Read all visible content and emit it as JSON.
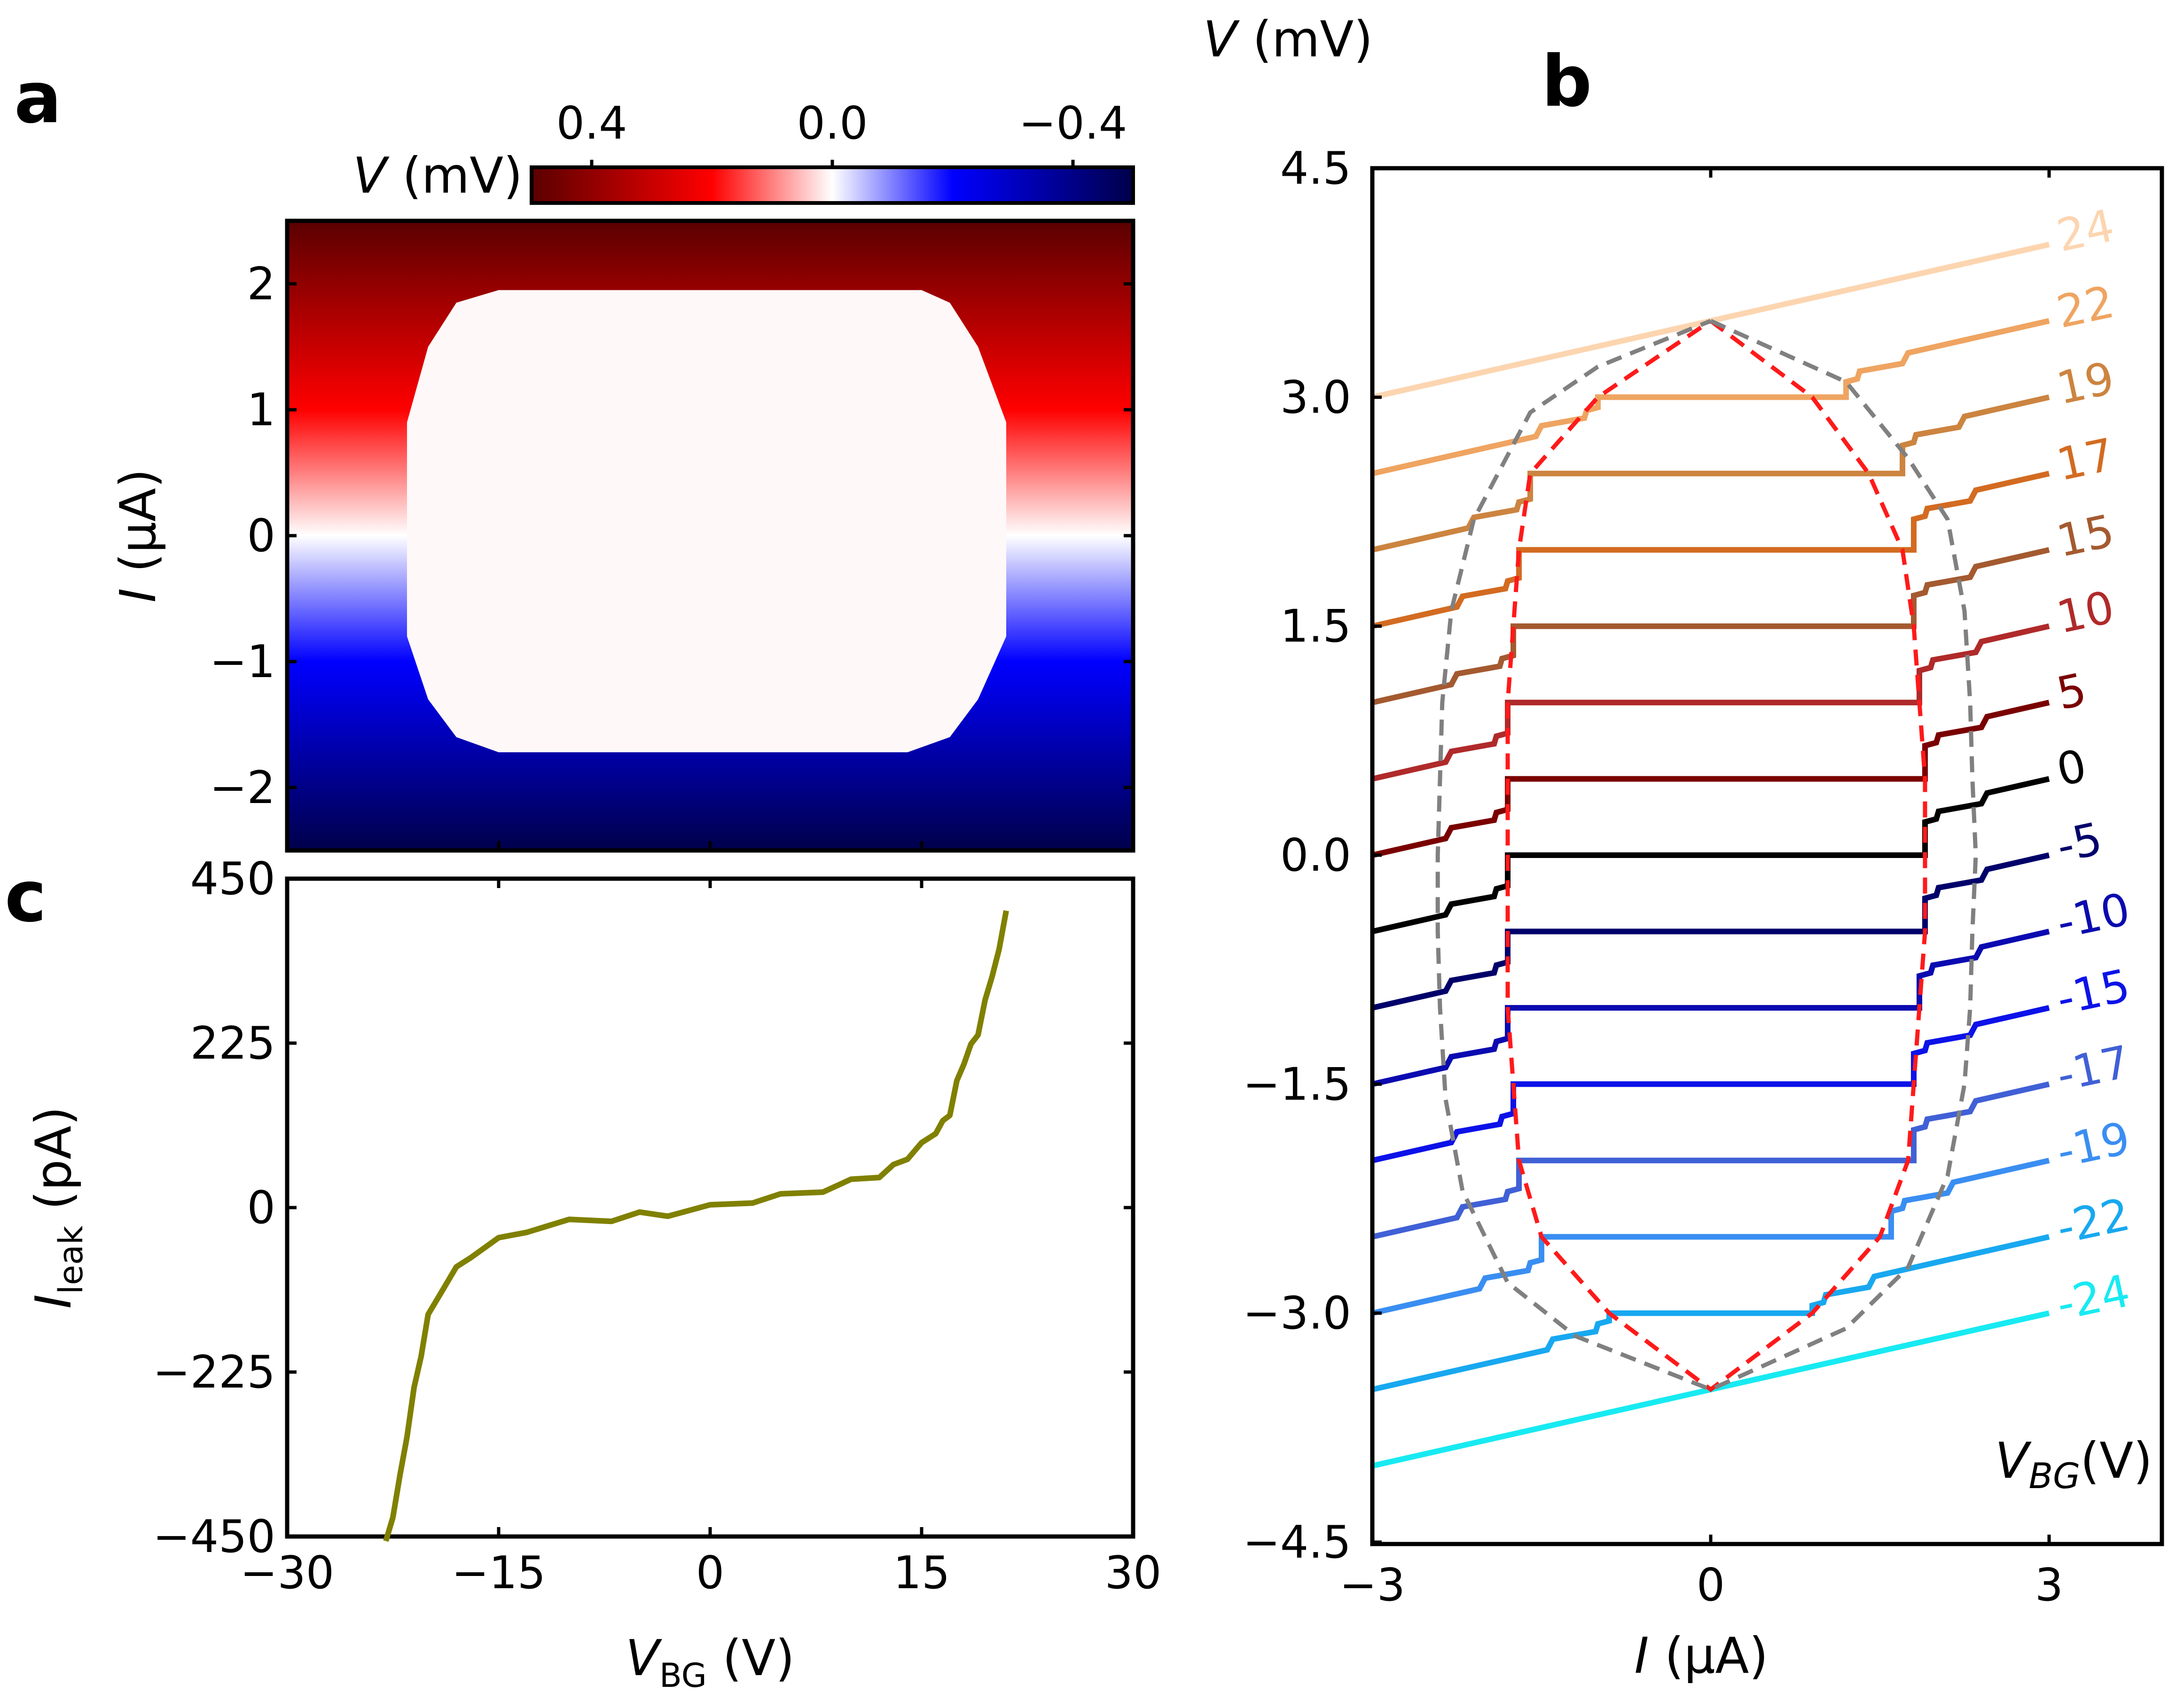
{
  "panels": {
    "a": "a",
    "b": "b",
    "c": "c"
  },
  "colorbar": {
    "label_italic": "V",
    "label_unit": " (mV)",
    "ticks": [
      "0.4",
      "0.0",
      "−0.4"
    ],
    "tick_values": [
      0.4,
      0.0,
      -0.4
    ],
    "range": [
      0.5,
      -0.5
    ],
    "colors": [
      "#5a0000",
      "#ff0000",
      "#ffffff",
      "#0000ff",
      "#00004a"
    ]
  },
  "chart_data": [
    {
      "id": "a",
      "type": "heatmap",
      "title": "",
      "xlabel": "",
      "ylabel_italic": "I",
      "ylabel_unit": " (μA)",
      "xlim": [
        -30,
        30
      ],
      "ylim": [
        -2.5,
        2.5
      ],
      "yticks": [
        2,
        1,
        0,
        -1,
        -2
      ],
      "ytick_labels": [
        "2",
        "1",
        "0",
        "−1",
        "−2"
      ],
      "superconducting_region": {
        "vbg_range": [
          -21.5,
          21.0
        ],
        "upper_switch_current_uA": [
          {
            "vbg": -21.5,
            "i": 0.9
          },
          {
            "vbg": -20,
            "i": 1.5
          },
          {
            "vbg": -18,
            "i": 1.85
          },
          {
            "vbg": -15,
            "i": 1.95
          },
          {
            "vbg": 0,
            "i": 1.95
          },
          {
            "vbg": 15,
            "i": 1.95
          },
          {
            "vbg": 17,
            "i": 1.85
          },
          {
            "vbg": 19,
            "i": 1.5
          },
          {
            "vbg": 21,
            "i": 0.9
          }
        ],
        "lower_switch_current_uA": [
          {
            "vbg": -21.5,
            "i": -0.8
          },
          {
            "vbg": -20,
            "i": -1.3
          },
          {
            "vbg": -18,
            "i": -1.6
          },
          {
            "vbg": -15,
            "i": -1.72
          },
          {
            "vbg": 0,
            "i": -1.72
          },
          {
            "vbg": 14,
            "i": -1.72
          },
          {
            "vbg": 17,
            "i": -1.6
          },
          {
            "vbg": 19,
            "i": -1.3
          },
          {
            "vbg": 21,
            "i": -0.8
          }
        ]
      }
    },
    {
      "id": "b",
      "type": "line",
      "title": "",
      "xlabel_italic": "I",
      "xlabel_unit": " (μA)",
      "ylabel_italic": "V",
      "ylabel_unit": " (mV)",
      "xlim": [
        -3,
        4.0
      ],
      "ylim": [
        -4.5,
        4.5
      ],
      "xticks": [
        -3,
        0,
        3
      ],
      "xtick_labels": [
        "−3",
        "0",
        "3"
      ],
      "yticks": [
        4.5,
        3.0,
        1.5,
        0.0,
        -1.5,
        -3.0,
        -4.5
      ],
      "ytick_labels": [
        "4.5",
        "3.0",
        "1.5",
        "0.0",
        "−1.5",
        "−3.0",
        "−4.5"
      ],
      "legend_title_italic": "V",
      "legend_title_sub": "BG",
      "legend_title_unit": "(V)",
      "slope_mV_per_uA": 0.167,
      "series": [
        {
          "name": "24",
          "vbg": 24,
          "offset_mV": 3.5,
          "ic_plus": 0.0,
          "ic_minus": 0.0,
          "color": "#fcd5b0"
        },
        {
          "name": "22",
          "vbg": 22,
          "offset_mV": 3.0,
          "ic_plus": 1.2,
          "ic_minus": -1.0,
          "color": "#efa461"
        },
        {
          "name": "19",
          "vbg": 19,
          "offset_mV": 2.5,
          "ic_plus": 1.7,
          "ic_minus": -1.6,
          "color": "#cc8440"
        },
        {
          "name": "17",
          "vbg": 17,
          "offset_mV": 2.0,
          "ic_plus": 1.8,
          "ic_minus": -1.7,
          "color": "#d36b21"
        },
        {
          "name": "15",
          "vbg": 15,
          "offset_mV": 1.5,
          "ic_plus": 1.8,
          "ic_minus": -1.75,
          "color": "#a45a30"
        },
        {
          "name": "10",
          "vbg": 10,
          "offset_mV": 1.0,
          "ic_plus": 1.85,
          "ic_minus": -1.8,
          "color": "#b02a2a"
        },
        {
          "name": "5",
          "vbg": 5,
          "offset_mV": 0.5,
          "ic_plus": 1.9,
          "ic_minus": -1.8,
          "color": "#7a0000"
        },
        {
          "name": "0",
          "vbg": 0,
          "offset_mV": 0.0,
          "ic_plus": 1.9,
          "ic_minus": -1.8,
          "color": "#000000"
        },
        {
          "name": "-5",
          "vbg": -5,
          "offset_mV": -0.5,
          "ic_plus": 1.9,
          "ic_minus": -1.8,
          "color": "#00006a"
        },
        {
          "name": "-10",
          "vbg": -10,
          "offset_mV": -1.0,
          "ic_plus": 1.85,
          "ic_minus": -1.8,
          "color": "#0a0ab0"
        },
        {
          "name": "-15",
          "vbg": -15,
          "offset_mV": -1.5,
          "ic_plus": 1.8,
          "ic_minus": -1.75,
          "color": "#0c12e8"
        },
        {
          "name": "-17",
          "vbg": -17,
          "offset_mV": -2.0,
          "ic_plus": 1.8,
          "ic_minus": -1.7,
          "color": "#4060d6"
        },
        {
          "name": "-19",
          "vbg": -19,
          "offset_mV": -2.5,
          "ic_plus": 1.6,
          "ic_minus": -1.5,
          "color": "#3a8ef2"
        },
        {
          "name": "-22",
          "vbg": -22,
          "offset_mV": -3.0,
          "ic_plus": 0.9,
          "ic_minus": -0.9,
          "color": "#18a8f0"
        },
        {
          "name": "-24",
          "vbg": -24,
          "offset_mV": -3.5,
          "ic_plus": 0.0,
          "ic_minus": 0.0,
          "color": "#18eaf2"
        }
      ],
      "envelopes": [
        {
          "name": "critical-current envelope",
          "style": "dashed",
          "color": "#ff1a1a",
          "points": [
            [
              0,
              3.5
            ],
            [
              0.9,
              3.0
            ],
            [
              1.4,
              2.5
            ],
            [
              1.7,
              2.0
            ],
            [
              1.8,
              1.5
            ],
            [
              1.85,
              1.0
            ],
            [
              1.9,
              0.5
            ],
            [
              1.9,
              0.0
            ],
            [
              1.9,
              -0.5
            ],
            [
              1.85,
              -1.0
            ],
            [
              1.8,
              -1.5
            ],
            [
              1.75,
              -2.0
            ],
            [
              1.5,
              -2.5
            ],
            [
              0.9,
              -3.0
            ],
            [
              0,
              -3.5
            ],
            [
              -0.9,
              -3.0
            ],
            [
              -1.5,
              -2.5
            ],
            [
              -1.7,
              -2.0
            ],
            [
              -1.75,
              -1.5
            ],
            [
              -1.8,
              -1.0
            ],
            [
              -1.8,
              -0.5
            ],
            [
              -1.8,
              0.0
            ],
            [
              -1.8,
              0.5
            ],
            [
              -1.8,
              1.0
            ],
            [
              -1.75,
              1.5
            ],
            [
              -1.7,
              2.0
            ],
            [
              -1.6,
              2.5
            ],
            [
              -1.0,
              3.0
            ],
            [
              0,
              3.5
            ]
          ]
        },
        {
          "name": "retrapping envelope",
          "style": "dashed",
          "color": "#808080",
          "points": [
            [
              0,
              3.5
            ],
            [
              1.2,
              3.1
            ],
            [
              1.75,
              2.6
            ],
            [
              2.1,
              2.2
            ],
            [
              2.25,
              1.6
            ],
            [
              2.3,
              1.0
            ],
            [
              2.32,
              0.5
            ],
            [
              2.35,
              0.0
            ],
            [
              2.32,
              -0.5
            ],
            [
              2.3,
              -1.0
            ],
            [
              2.25,
              -1.5
            ],
            [
              2.1,
              -2.1
            ],
            [
              1.75,
              -2.7
            ],
            [
              1.2,
              -3.1
            ],
            [
              0,
              -3.5
            ],
            [
              -1.2,
              -3.15
            ],
            [
              -1.8,
              -2.8
            ],
            [
              -2.2,
              -2.2
            ],
            [
              -2.35,
              -1.6
            ],
            [
              -2.4,
              -1.0
            ],
            [
              -2.42,
              -0.5
            ],
            [
              -2.42,
              0.0
            ],
            [
              -2.4,
              0.5
            ],
            [
              -2.38,
              1.0
            ],
            [
              -2.3,
              1.6
            ],
            [
              -2.1,
              2.2
            ],
            [
              -1.6,
              2.9
            ],
            [
              -1.0,
              3.2
            ],
            [
              0,
              3.5
            ]
          ]
        }
      ]
    },
    {
      "id": "c",
      "type": "line",
      "title": "",
      "xlabel_italic": "V",
      "xlabel_sub": "BG",
      "xlabel_unit": " (V)",
      "ylabel_italic": "I",
      "ylabel_sub": "leak",
      "ylabel_unit": " (pA)",
      "xlim": [
        -30,
        30
      ],
      "ylim": [
        -450,
        450
      ],
      "xticks": [
        -30,
        -15,
        0,
        15,
        30
      ],
      "xtick_labels": [
        "−30",
        "−15",
        "0",
        "15",
        "30"
      ],
      "yticks": [
        450,
        225,
        0,
        -225,
        -450
      ],
      "ytick_labels": [
        "450",
        "225",
        "0",
        "−225",
        "−450"
      ],
      "series": [
        {
          "name": "I_leak",
          "color": "#808000",
          "x": [
            -23.0,
            -22.5,
            -22.0,
            -21.5,
            -21.0,
            -20.5,
            -20.0,
            -19.0,
            -18.0,
            -17.0,
            -15.0,
            -13.0,
            -10.0,
            -7.0,
            -5.0,
            -3.0,
            0.0,
            3.0,
            5.0,
            8.0,
            10.0,
            12.0,
            13.0,
            14.0,
            15.0,
            16.0,
            16.5,
            17.0,
            17.5,
            18.0,
            18.5,
            19.0,
            19.5,
            20.0,
            20.5,
            21.0
          ],
          "values": [
            -460,
            -420,
            -370,
            -310,
            -250,
            -200,
            -150,
            -110,
            -85,
            -65,
            -45,
            -30,
            -20,
            -15,
            -10,
            -8,
            0,
            10,
            15,
            25,
            35,
            45,
            55,
            70,
            85,
            105,
            115,
            130,
            170,
            200,
            220,
            240,
            280,
            320,
            350,
            410
          ]
        }
      ]
    }
  ]
}
